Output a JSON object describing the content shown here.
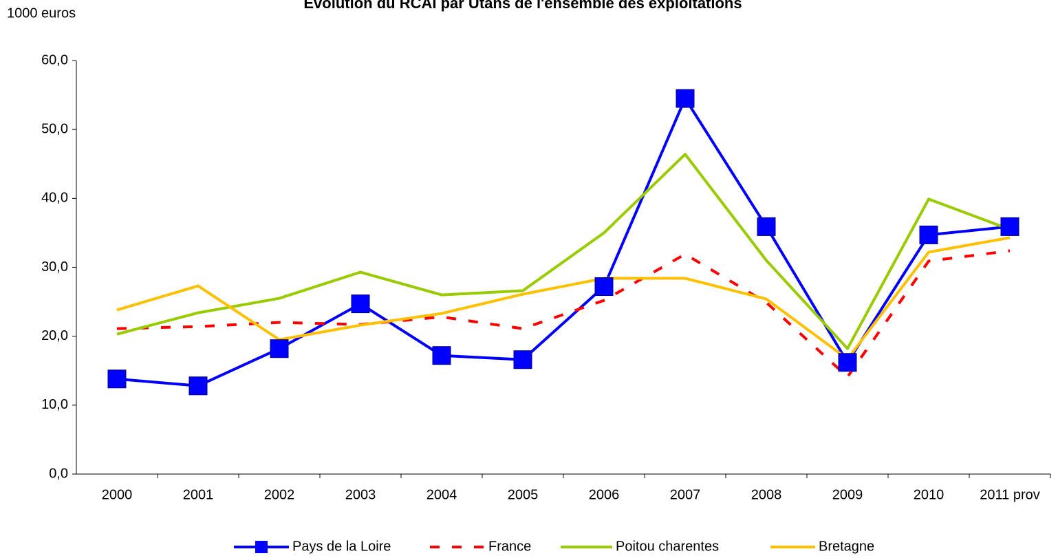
{
  "chart_data": {
    "type": "line",
    "title": "Evolution du RCAI par Utans de l'ensemble des exploitations",
    "y_label": "1000 euros",
    "categories": [
      "2000",
      "2001",
      "2002",
      "2003",
      "2004",
      "2005",
      "2006",
      "2007",
      "2008",
      "2009",
      "2010",
      "2011 prov"
    ],
    "series": [
      {
        "name": "Pays de la Loire",
        "color": "#0000ff",
        "marker": "square",
        "dashed": false,
        "values": [
          13.8,
          12.8,
          18.2,
          24.7,
          17.2,
          16.6,
          27.2,
          54.5,
          35.9,
          16.2,
          34.7,
          35.9
        ]
      },
      {
        "name": "France",
        "color": "#ff0000",
        "marker": "none",
        "dashed": true,
        "values": [
          21.1,
          21.4,
          22.0,
          21.7,
          22.8,
          21.1,
          25.2,
          31.9,
          24.9,
          14.1,
          30.9,
          32.4
        ]
      },
      {
        "name": "Poitou charentes",
        "color": "#99cc00",
        "marker": "none",
        "dashed": false,
        "values": [
          20.3,
          23.4,
          25.5,
          29.3,
          26.0,
          26.6,
          35.0,
          46.4,
          31.0,
          18.2,
          39.9,
          35.5
        ]
      },
      {
        "name": "Bretagne",
        "color": "#ffc000",
        "marker": "none",
        "dashed": false,
        "values": [
          23.8,
          27.3,
          19.5,
          21.6,
          23.3,
          26.1,
          28.4,
          28.4,
          25.4,
          16.7,
          32.2,
          34.3
        ]
      }
    ],
    "ylim": [
      0,
      60
    ],
    "yticks": [
      {
        "value": 0,
        "label": "0,0"
      },
      {
        "value": 10,
        "label": "10,0"
      },
      {
        "value": 20,
        "label": "20,0"
      },
      {
        "value": 30,
        "label": "30,0"
      },
      {
        "value": 40,
        "label": "40,0"
      },
      {
        "value": 50,
        "label": "50,0"
      },
      {
        "value": 60,
        "label": "60,0"
      }
    ],
    "grid": false,
    "legend": "bottom"
  }
}
